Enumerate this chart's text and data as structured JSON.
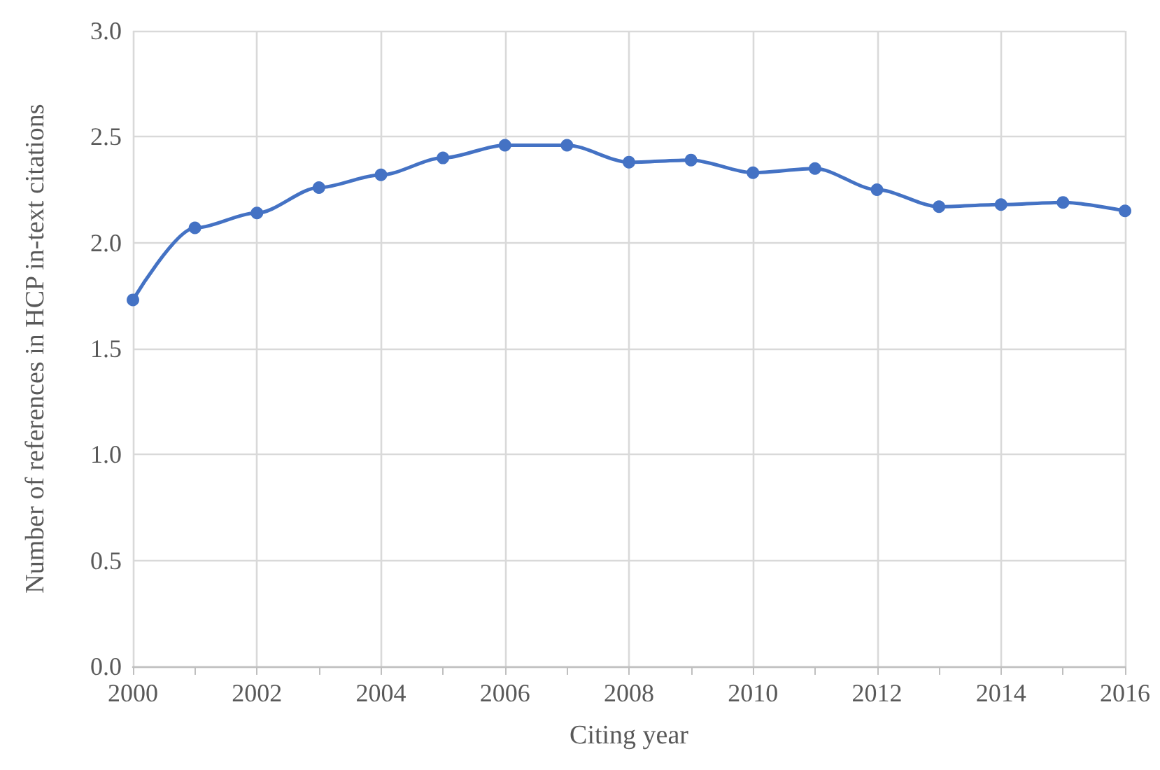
{
  "chart_data": {
    "type": "line",
    "xlabel": "Citing year",
    "ylabel": "Number of references in HCP in-text citations",
    "x": [
      2000,
      2001,
      2002,
      2003,
      2004,
      2005,
      2006,
      2007,
      2008,
      2009,
      2010,
      2011,
      2012,
      2013,
      2014,
      2015,
      2016
    ],
    "series": [
      {
        "color": "#4472c4",
        "values": [
          1.73,
          2.07,
          2.14,
          2.26,
          2.32,
          2.4,
          2.46,
          2.46,
          2.38,
          2.39,
          2.33,
          2.35,
          2.25,
          2.17,
          2.18,
          2.19,
          2.15
        ]
      }
    ],
    "xlim": [
      2000,
      2016
    ],
    "xticks": [
      2000,
      {
        "value": 2001,
        "label": null
      },
      2002,
      {
        "value": 2003,
        "label": null
      },
      2004,
      {
        "value": 2005,
        "label": null
      },
      2006,
      {
        "value": 2007,
        "label": null
      },
      2008,
      {
        "value": 2009,
        "label": null
      },
      2010,
      {
        "value": 2011,
        "label": null
      },
      2012,
      {
        "value": 2013,
        "label": null
      },
      2014,
      {
        "value": 2015,
        "label": null
      },
      2016
    ],
    "ylim": [
      0,
      3
    ],
    "yticks": [
      {
        "value": 0,
        "label": "0.0"
      },
      0.5,
      {
        "value": 1,
        "label": "1.0"
      },
      1.5,
      {
        "value": 2,
        "label": "2.0"
      },
      2.5,
      {
        "value": 3,
        "label": "3.0"
      }
    ],
    "grid": true,
    "marker": "circle",
    "line_style": "solid"
  }
}
